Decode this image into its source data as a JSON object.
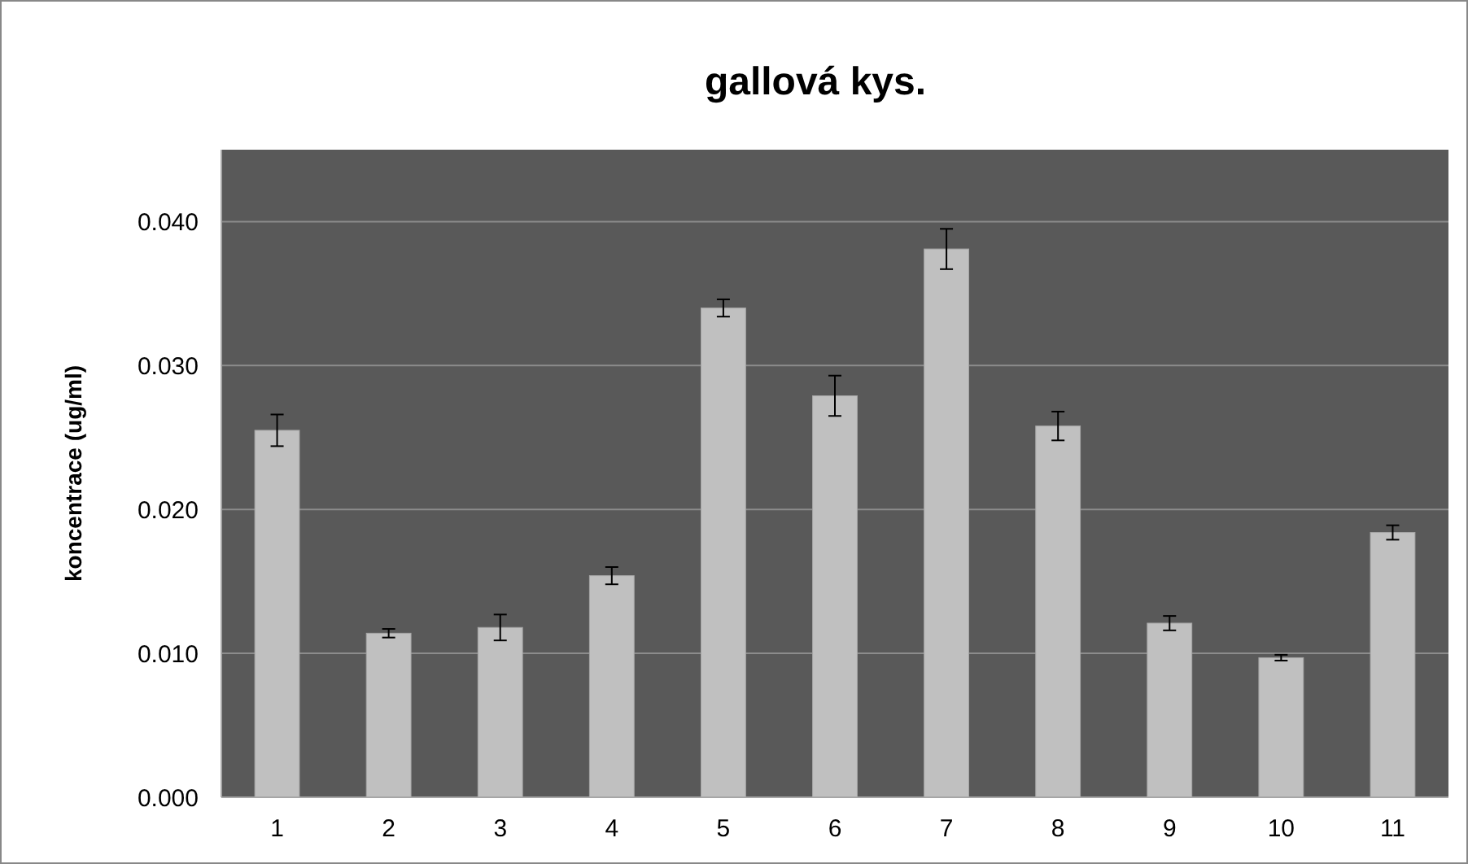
{
  "chart_data": {
    "type": "bar",
    "title": "gallová kys.",
    "ylabel": "koncentrace (ug/ml)",
    "categories": [
      "1",
      "2",
      "3",
      "4",
      "5",
      "6",
      "7",
      "8",
      "9",
      "10",
      "11"
    ],
    "values": [
      0.0255,
      0.0114,
      0.0118,
      0.0154,
      0.034,
      0.0279,
      0.0381,
      0.0258,
      0.0121,
      0.0097,
      0.0184
    ],
    "errors": [
      0.0011,
      0.0003,
      0.0009,
      0.0006,
      0.0006,
      0.0014,
      0.0014,
      0.001,
      0.0005,
      0.0002,
      0.0005
    ],
    "color": "#c0c0c0",
    "ylim": [
      0,
      0.045
    ],
    "yticks": [
      {
        "value": 0,
        "label": "0.000"
      },
      {
        "value": 0.01,
        "label": "0.010"
      },
      {
        "value": 0.02,
        "label": "0.020"
      },
      {
        "value": 0.03,
        "label": "0.030"
      },
      {
        "value": 0.04,
        "label": "0.040"
      }
    ],
    "grid": "y"
  }
}
